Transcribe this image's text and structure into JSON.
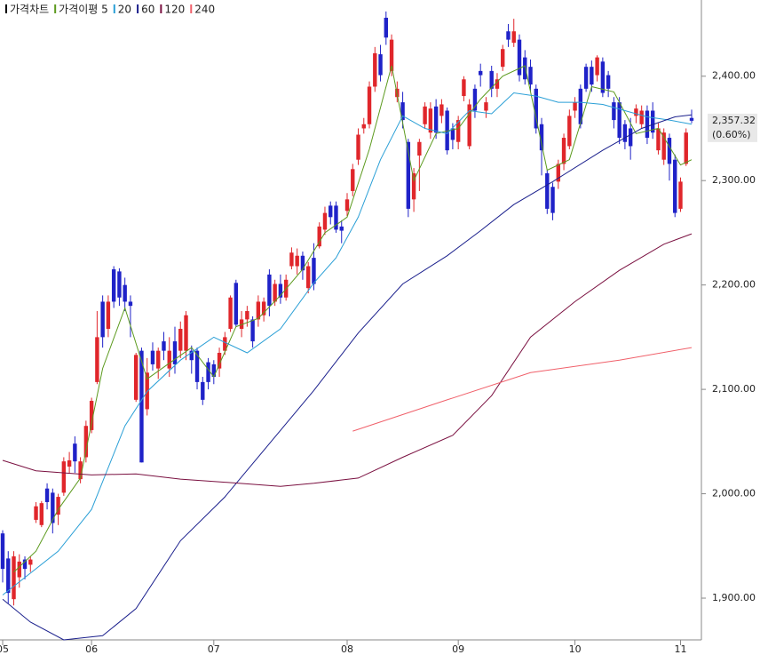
{
  "chart_data": {
    "type": "candlestick",
    "name": "가격차트",
    "name_color": "#000000",
    "up_color": "#e0262b",
    "down_color": "#1f22c8",
    "ylim": [
      1860,
      2473
    ],
    "yticks": [
      {
        "value": 1900,
        "label": "1,900.00"
      },
      {
        "value": 2000,
        "label": "2,000.00"
      },
      {
        "value": 2100,
        "label": "2,100.00"
      },
      {
        "value": 2200,
        "label": "2,200.00"
      },
      {
        "value": 2300,
        "label": "2,300.00"
      },
      {
        "value": 2400,
        "label": "2,400.00"
      }
    ],
    "xticks": [
      {
        "value": 0,
        "label": "05"
      },
      {
        "value": 16,
        "label": "06"
      },
      {
        "value": 38,
        "label": "07"
      },
      {
        "value": 62,
        "label": "08"
      },
      {
        "value": 82,
        "label": "09"
      },
      {
        "value": 103,
        "label": "10"
      },
      {
        "value": 122,
        "label": "11"
      }
    ],
    "grid": false,
    "last_price_label": "2,357.32",
    "change_label": "(0.60%)",
    "candles": {
      "open": [
        1962,
        1938,
        1899,
        1920,
        1937,
        1932,
        1975,
        1970,
        2005,
        2001,
        1980,
        2001,
        2026,
        2048,
        2014,
        2035,
        2061,
        2107,
        2184,
        2158,
        2215,
        2213,
        2200,
        2184,
        2090,
        2137,
        2081,
        2137,
        2120,
        2146,
        2120,
        2146,
        2137,
        2137,
        2137,
        2137,
        2107,
        2126,
        2124,
        2120,
        2137,
        2158,
        2202,
        2158,
        2167,
        2167,
        2167,
        2171,
        2210,
        2184,
        2201,
        2188,
        2218,
        2218,
        2228,
        2197,
        2226,
        2237,
        2253,
        2276,
        2276,
        2256,
        2271,
        2290,
        2320,
        2350,
        2354,
        2390,
        2421,
        2456,
        2405,
        2380,
        2375,
        2337,
        2282,
        2324,
        2354,
        2346,
        2371,
        2362,
        2367,
        2350,
        2337,
        2381,
        2333,
        2388,
        2405,
        2367,
        2405,
        2388,
        2409,
        2443,
        2432,
        2435,
        2418,
        2409,
        2388,
        2354,
        2307,
        2294,
        2299,
        2316,
        2333,
        2367,
        2388,
        2409,
        2409,
        2401,
        2414,
        2401,
        2375,
        2375,
        2354,
        2350,
        2362,
        2354,
        2367,
        2367,
        2329,
        2320,
        2341,
        2320,
        2273,
        2316,
        2360
      ],
      "high": [
        1965,
        1945,
        1945,
        1942,
        1940,
        1940,
        1992,
        1993,
        2010,
        2005,
        2000,
        2035,
        2040,
        2055,
        2035,
        2070,
        2092,
        2175,
        2190,
        2190,
        2218,
        2216,
        2207,
        2190,
        2135,
        2140,
        2130,
        2145,
        2140,
        2155,
        2150,
        2160,
        2165,
        2175,
        2142,
        2140,
        2112,
        2130,
        2128,
        2140,
        2155,
        2190,
        2205,
        2175,
        2180,
        2170,
        2190,
        2188,
        2215,
        2205,
        2210,
        2210,
        2236,
        2235,
        2232,
        2222,
        2240,
        2260,
        2275,
        2280,
        2280,
        2262,
        2288,
        2316,
        2350,
        2360,
        2395,
        2428,
        2430,
        2462,
        2440,
        2395,
        2385,
        2340,
        2312,
        2340,
        2375,
        2375,
        2378,
        2378,
        2370,
        2355,
        2362,
        2400,
        2378,
        2392,
        2412,
        2380,
        2410,
        2403,
        2430,
        2450,
        2455,
        2440,
        2425,
        2416,
        2392,
        2360,
        2310,
        2298,
        2320,
        2345,
        2368,
        2380,
        2392,
        2412,
        2415,
        2420,
        2418,
        2405,
        2380,
        2380,
        2358,
        2360,
        2373,
        2372,
        2372,
        2375,
        2355,
        2350,
        2345,
        2325,
        2303,
        2350,
        2368
      ],
      "low": [
        1915,
        1895,
        1893,
        1910,
        1918,
        1925,
        1972,
        1968,
        1985,
        1962,
        1970,
        1998,
        2020,
        2020,
        2010,
        2030,
        2058,
        2105,
        2140,
        2150,
        2178,
        2180,
        2175,
        2150,
        2088,
        2030,
        2075,
        2118,
        2110,
        2128,
        2112,
        2115,
        2130,
        2128,
        2115,
        2100,
        2085,
        2100,
        2105,
        2112,
        2133,
        2155,
        2160,
        2150,
        2160,
        2140,
        2160,
        2165,
        2170,
        2180,
        2182,
        2185,
        2215,
        2210,
        2205,
        2192,
        2195,
        2235,
        2248,
        2258,
        2250,
        2240,
        2266,
        2285,
        2315,
        2345,
        2350,
        2385,
        2395,
        2430,
        2400,
        2375,
        2350,
        2265,
        2270,
        2290,
        2350,
        2340,
        2340,
        2355,
        2325,
        2330,
        2330,
        2376,
        2330,
        2360,
        2390,
        2360,
        2380,
        2380,
        2405,
        2428,
        2428,
        2395,
        2392,
        2385,
        2345,
        2305,
        2268,
        2262,
        2292,
        2310,
        2330,
        2360,
        2350,
        2385,
        2385,
        2395,
        2380,
        2380,
        2350,
        2335,
        2330,
        2320,
        2355,
        2350,
        2335,
        2340,
        2325,
        2315,
        2300,
        2265,
        2270,
        2314,
        2355
      ],
      "close": [
        1928,
        1905,
        1940,
        1935,
        1928,
        1937,
        1988,
        1991,
        1992,
        1972,
        1997,
        2031,
        2032,
        2031,
        2031,
        2065,
        2089,
        2150,
        2150,
        2184,
        2184,
        2188,
        2184,
        2180,
        2133,
        2030,
        2116,
        2124,
        2137,
        2137,
        2137,
        2124,
        2158,
        2171,
        2128,
        2107,
        2090,
        2107,
        2112,
        2135,
        2150,
        2188,
        2162,
        2167,
        2175,
        2146,
        2184,
        2184,
        2180,
        2201,
        2188,
        2205,
        2231,
        2228,
        2214,
        2218,
        2201,
        2256,
        2269,
        2265,
        2253,
        2252,
        2282,
        2311,
        2344,
        2354,
        2390,
        2422,
        2401,
        2437,
        2435,
        2388,
        2358,
        2273,
        2307,
        2337,
        2371,
        2369,
        2346,
        2373,
        2329,
        2339,
        2358,
        2397,
        2373,
        2367,
        2401,
        2375,
        2388,
        2397,
        2426,
        2435,
        2443,
        2401,
        2397,
        2392,
        2350,
        2329,
        2273,
        2269,
        2316,
        2341,
        2362,
        2375,
        2354,
        2388,
        2392,
        2418,
        2384,
        2388,
        2358,
        2341,
        2337,
        2333,
        2369,
        2367,
        2341,
        2346,
        2350,
        2346,
        2316,
        2269,
        2299,
        2346,
        2357.32
      ]
    },
    "series": [
      {
        "name": "가격이평 5",
        "color": "#5c9a1e",
        "x": [
          2,
          6,
          10,
          14,
          18,
          22,
          26,
          30,
          34,
          38,
          42,
          46,
          50,
          54,
          58,
          62,
          66,
          70,
          74,
          78,
          82,
          86,
          90,
          94,
          98,
          102,
          106,
          110,
          114,
          118,
          122,
          124
        ],
        "values": [
          1925,
          1945,
          1985,
          2015,
          2120,
          2178,
          2110,
          2125,
          2140,
          2112,
          2160,
          2168,
          2190,
          2215,
          2250,
          2265,
          2330,
          2410,
          2300,
          2345,
          2350,
          2378,
          2400,
          2410,
          2310,
          2320,
          2390,
          2385,
          2345,
          2350,
          2315,
          2320
        ]
      },
      {
        "name": "20",
        "color": "#2a9fd6",
        "x": [
          0,
          10,
          16,
          22,
          26,
          32,
          38,
          44,
          50,
          56,
          60,
          64,
          68,
          72,
          76,
          80,
          84,
          88,
          92,
          96,
          100,
          104,
          108,
          112,
          116,
          120,
          124
        ],
        "values": [
          1903,
          1945,
          1985,
          2065,
          2098,
          2128,
          2150,
          2135,
          2158,
          2202,
          2226,
          2265,
          2320,
          2362,
          2350,
          2345,
          2367,
          2364,
          2384,
          2381,
          2375,
          2375,
          2373,
          2367,
          2361,
          2358,
          2354
        ]
      },
      {
        "name": "60",
        "color": "#1a1f8c",
        "x": [
          0,
          5,
          11,
          18,
          24,
          32,
          40,
          48,
          56,
          64,
          72,
          80,
          86,
          92,
          99,
          108,
          115,
          121,
          124
        ],
        "values": [
          1899,
          1877,
          1860,
          1864,
          1890,
          1955,
          1997,
          2048,
          2099,
          2154,
          2201,
          2228,
          2252,
          2277,
          2299,
          2329,
          2350,
          2361,
          2363
        ]
      },
      {
        "name": "120",
        "color": "#7a1040",
        "x": [
          0,
          6,
          16,
          24,
          32,
          40,
          50,
          56,
          64,
          72,
          81,
          88,
          95,
          103,
          111,
          119,
          124
        ],
        "values": [
          2032,
          2022,
          2018,
          2019,
          2014,
          2011,
          2007,
          2010,
          2015,
          2035,
          2056,
          2094,
          2150,
          2184,
          2214,
          2239,
          2249
        ]
      },
      {
        "name": "240",
        "color": "#f0606a",
        "x": [
          63,
          80,
          95,
          111,
          124
        ],
        "values": [
          2060,
          2090,
          2116,
          2128,
          2140
        ]
      }
    ]
  }
}
